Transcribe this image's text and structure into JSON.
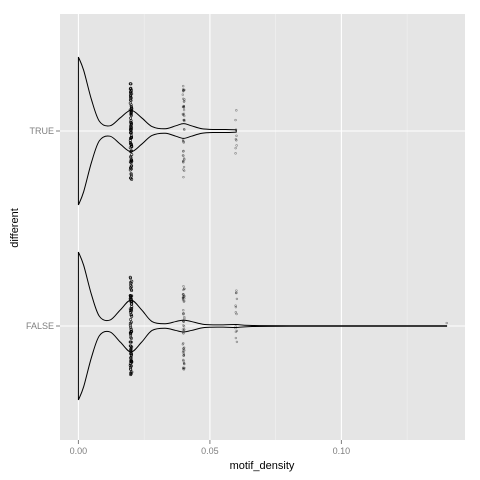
{
  "chart_data": {
    "type": "violin",
    "orientation": "horizontal",
    "xlabel": "motif_density",
    "ylabel": "different",
    "xlim": [
      -0.007,
      0.147
    ],
    "x_ticks": [
      0.0,
      0.05,
      0.1
    ],
    "x_tick_labels": [
      "0.00",
      "0.05",
      "0.10"
    ],
    "categories": [
      "TRUE",
      "FALSE"
    ],
    "groups": [
      {
        "name": "TRUE",
        "value_levels": [
          0.0,
          0.02,
          0.04,
          0.06
        ],
        "max_value": 0.06,
        "density_profile": [
          {
            "x": 0.0,
            "w": 1.0
          },
          {
            "x": 0.002,
            "w": 0.82
          },
          {
            "x": 0.005,
            "w": 0.42
          },
          {
            "x": 0.008,
            "w": 0.13
          },
          {
            "x": 0.012,
            "w": 0.07
          },
          {
            "x": 0.016,
            "w": 0.18
          },
          {
            "x": 0.02,
            "w": 0.28
          },
          {
            "x": 0.024,
            "w": 0.18
          },
          {
            "x": 0.028,
            "w": 0.06
          },
          {
            "x": 0.033,
            "w": 0.03
          },
          {
            "x": 0.037,
            "w": 0.07
          },
          {
            "x": 0.04,
            "w": 0.1
          },
          {
            "x": 0.043,
            "w": 0.07
          },
          {
            "x": 0.047,
            "w": 0.03
          },
          {
            "x": 0.052,
            "w": 0.02
          },
          {
            "x": 0.056,
            "w": 0.02
          },
          {
            "x": 0.06,
            "w": 0.015
          }
        ]
      },
      {
        "name": "FALSE",
        "value_levels": [
          0.0,
          0.02,
          0.04,
          0.06,
          0.14
        ],
        "max_value": 0.14,
        "density_profile": [
          {
            "x": 0.0,
            "w": 1.0
          },
          {
            "x": 0.002,
            "w": 0.82
          },
          {
            "x": 0.005,
            "w": 0.42
          },
          {
            "x": 0.008,
            "w": 0.13
          },
          {
            "x": 0.012,
            "w": 0.08
          },
          {
            "x": 0.016,
            "w": 0.22
          },
          {
            "x": 0.02,
            "w": 0.35
          },
          {
            "x": 0.024,
            "w": 0.22
          },
          {
            "x": 0.028,
            "w": 0.06
          },
          {
            "x": 0.033,
            "w": 0.03
          },
          {
            "x": 0.037,
            "w": 0.06
          },
          {
            "x": 0.04,
            "w": 0.08
          },
          {
            "x": 0.043,
            "w": 0.06
          },
          {
            "x": 0.048,
            "w": 0.02
          },
          {
            "x": 0.055,
            "w": 0.015
          },
          {
            "x": 0.06,
            "w": 0.02
          },
          {
            "x": 0.065,
            "w": 0.008
          },
          {
            "x": 0.08,
            "w": 0.004
          },
          {
            "x": 0.14,
            "w": 0.004
          }
        ]
      }
    ],
    "grid": true,
    "legend": "none",
    "colors": {
      "panel_background": "#e5e5e5",
      "grid_major": "#ffffff",
      "grid_minor": "#f2f2f2",
      "violin_line": "#000000",
      "points": "#000000"
    }
  }
}
